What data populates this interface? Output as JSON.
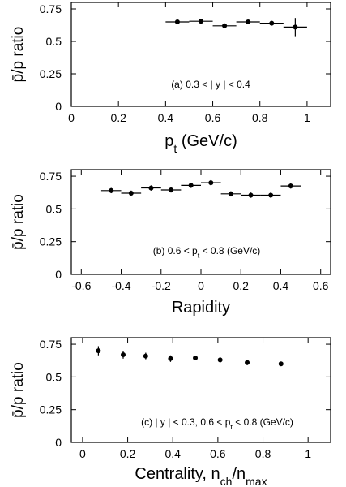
{
  "chart_data": [
    {
      "type": "scatter",
      "panel": "a",
      "ylabel": "p̄/p ratio",
      "xlabel": {
        "main": "p",
        "sub": "t",
        "tail": " (GeV/c)"
      },
      "annotation": {
        "text": "(a) 0.3 < | y | < 0.4"
      },
      "xlim": [
        0,
        1.1
      ],
      "ylim": [
        0,
        0.8
      ],
      "xticks": [
        0,
        0.2,
        0.4,
        0.6,
        0.8,
        1
      ],
      "xtick_labels": [
        "0",
        "0.2",
        "0.4",
        "0.6",
        "0.8",
        "1"
      ],
      "yticks": [
        0,
        0.25,
        0.5,
        0.75
      ],
      "ytick_labels": [
        "0",
        "0.25",
        "0.5",
        "0.75"
      ],
      "grid": false,
      "series": [
        {
          "x": [
            0.45,
            0.55,
            0.65,
            0.75,
            0.85,
            0.95
          ],
          "y": [
            0.65,
            0.655,
            0.62,
            0.65,
            0.64,
            0.61
          ],
          "xerr": [
            0.05,
            0.05,
            0.05,
            0.05,
            0.05,
            0.05
          ],
          "yerr": [
            0.01,
            0.01,
            0.01,
            0.012,
            0.015,
            0.07
          ]
        }
      ]
    },
    {
      "type": "scatter",
      "panel": "b",
      "ylabel": "p̄/p ratio",
      "xlabel": {
        "main": "Rapidity"
      },
      "annotation": {
        "text": "(b) 0.6 < p",
        "sub": "t",
        "tail": " < 0.8 (GeV/c)"
      },
      "xlim": [
        -0.65,
        0.65
      ],
      "ylim": [
        0,
        0.8
      ],
      "xticks": [
        -0.6,
        -0.4,
        -0.2,
        0,
        0.2,
        0.4,
        0.6
      ],
      "xtick_labels": [
        "-0.6",
        "-0.4",
        "-0.2",
        "0",
        "0.2",
        "0.4",
        "0.6"
      ],
      "yticks": [
        0,
        0.25,
        0.5,
        0.75
      ],
      "ytick_labels": [
        "0",
        "0.25",
        "0.5",
        "0.75"
      ],
      "grid": false,
      "series": [
        {
          "x": [
            -0.45,
            -0.35,
            -0.25,
            -0.15,
            -0.05,
            0.05,
            0.15,
            0.25,
            0.35,
            0.45
          ],
          "y": [
            0.64,
            0.62,
            0.66,
            0.645,
            0.68,
            0.7,
            0.615,
            0.605,
            0.605,
            0.675
          ],
          "xerr": [
            0.05,
            0.05,
            0.05,
            0.05,
            0.05,
            0.05,
            0.05,
            0.05,
            0.05,
            0.05
          ],
          "yerr": [
            0.02,
            0.02,
            0.02,
            0.02,
            0.02,
            0.02,
            0.02,
            0.02,
            0.02,
            0.02
          ]
        }
      ]
    },
    {
      "type": "scatter",
      "panel": "c",
      "ylabel": "p̄/p ratio",
      "xlabel": {
        "main": "Centrality, n",
        "sub": "ch",
        "mid": "/n",
        "sub2": "max"
      },
      "annotation": {
        "text": "(c) | y | < 0.3,  0.6 < p",
        "sub": "t",
        "tail": " < 0.8 (GeV/c)"
      },
      "xlim": [
        -0.05,
        1.1
      ],
      "ylim": [
        0,
        0.8
      ],
      "xticks": [
        0,
        0.2,
        0.4,
        0.6,
        0.8,
        1
      ],
      "xtick_labels": [
        "0",
        "0.2",
        "0.4",
        "0.6",
        "0.8",
        "1"
      ],
      "yticks": [
        0,
        0.25,
        0.5,
        0.75
      ],
      "ytick_labels": [
        "0",
        "0.25",
        "0.5",
        "0.75"
      ],
      "grid": false,
      "series": [
        {
          "x": [
            0.07,
            0.18,
            0.28,
            0.39,
            0.5,
            0.61,
            0.73,
            0.88
          ],
          "y": [
            0.7,
            0.67,
            0.66,
            0.64,
            0.645,
            0.63,
            0.61,
            0.6
          ],
          "xerr": [
            0,
            0,
            0,
            0,
            0,
            0,
            0,
            0
          ],
          "yerr": [
            0.035,
            0.03,
            0.025,
            0.025,
            0.015,
            0.02,
            0.02,
            0.01
          ]
        }
      ]
    }
  ]
}
